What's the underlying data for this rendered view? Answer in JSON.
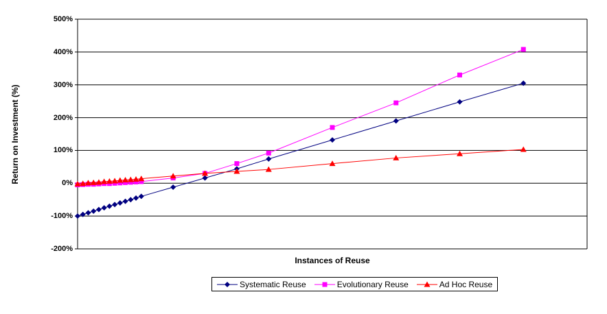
{
  "chart_data": {
    "type": "line",
    "title": "",
    "xlabel": "Instances of Reuse",
    "ylabel": "Return on Investment (%)",
    "grid": "horizontal",
    "legend_position": "bottom",
    "x_axis": {
      "min": 1,
      "max": 97,
      "tick_labels_visible": false
    },
    "y_axis": {
      "min": -200,
      "max": 500,
      "tick_step": 100,
      "tick_values": [
        500,
        400,
        300,
        200,
        100,
        0,
        -100,
        -200
      ],
      "tick_labels": [
        "500%",
        "400%",
        "300%",
        "200%",
        "100%",
        "0%",
        "-100%",
        "-200%"
      ]
    },
    "x": [
      1,
      2,
      3,
      4,
      5,
      6,
      7,
      8,
      9,
      10,
      11,
      12,
      13,
      19,
      25,
      31,
      37,
      49,
      61,
      73,
      85
    ],
    "series": [
      {
        "name": "Systematic Reuse",
        "color": "#000080",
        "marker": "diamond",
        "values": [
          -100,
          -95,
          -90,
          -85,
          -80,
          -75,
          -70,
          -65,
          -60,
          -55,
          -50,
          -45,
          -40,
          -12,
          16,
          44,
          74,
          132,
          190,
          248,
          305
        ]
      },
      {
        "name": "Evolutionary Reuse",
        "color": "#FF00FF",
        "marker": "square",
        "values": [
          -5,
          -4,
          -3,
          -3,
          -2,
          -1,
          -1,
          0,
          1,
          2,
          3,
          4,
          5,
          16,
          30,
          60,
          92,
          170,
          245,
          330,
          408
        ]
      },
      {
        "name": "Ad Hoc Reuse",
        "color": "#FF0000",
        "marker": "triangle",
        "values": [
          -2,
          -1,
          1,
          2,
          3,
          5,
          6,
          7,
          9,
          10,
          11,
          12,
          14,
          22,
          30,
          36,
          42,
          60,
          77,
          90,
          103
        ]
      }
    ]
  },
  "colors": {
    "axis": "#000000",
    "grid": "#000000",
    "background": "#FFFFFF"
  }
}
